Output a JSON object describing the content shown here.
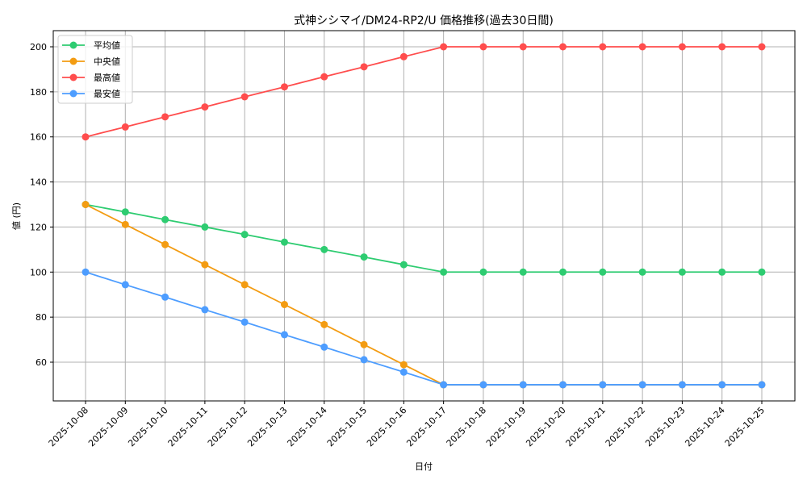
{
  "chart_data": {
    "type": "line",
    "title": "式神シシマイ/DM24-RP2/U 価格推移(過去30日間)",
    "xlabel": "日付",
    "ylabel": "値 (円)",
    "x": [
      "2025-10-08",
      "2025-10-09",
      "2025-10-10",
      "2025-10-11",
      "2025-10-12",
      "2025-10-13",
      "2025-10-14",
      "2025-10-15",
      "2025-10-16",
      "2025-10-17",
      "2025-10-18",
      "2025-10-19",
      "2025-10-20",
      "2025-10-21",
      "2025-10-22",
      "2025-10-23",
      "2025-10-24",
      "2025-10-25"
    ],
    "series": [
      {
        "name": "平均値",
        "color": "#2ecc71",
        "values": [
          130,
          126.7,
          123.3,
          120,
          116.7,
          113.3,
          110,
          106.7,
          103.3,
          100,
          100,
          100,
          100,
          100,
          100,
          100,
          100,
          100
        ]
      },
      {
        "name": "中央値",
        "color": "#f39c12",
        "values": [
          130,
          121.1,
          112.2,
          103.3,
          94.4,
          85.6,
          76.7,
          67.8,
          58.9,
          50,
          50,
          50,
          50,
          50,
          50,
          50,
          50,
          50
        ]
      },
      {
        "name": "最高値",
        "color": "#ff4d4d",
        "values": [
          160,
          164.4,
          168.9,
          173.3,
          177.8,
          182.2,
          186.7,
          191.1,
          195.6,
          200,
          200,
          200,
          200,
          200,
          200,
          200,
          200,
          200
        ]
      },
      {
        "name": "最安値",
        "color": "#4d9dff",
        "values": [
          100,
          94.4,
          88.9,
          83.3,
          77.8,
          72.2,
          66.7,
          61.1,
          55.6,
          50,
          50,
          50,
          50,
          50,
          50,
          50,
          50,
          50
        ]
      }
    ],
    "yticks": [
      60,
      80,
      100,
      120,
      140,
      160,
      180,
      200
    ],
    "ylim": [
      42.5,
      207.5
    ],
    "grid": true,
    "legend_position": "upper left"
  }
}
